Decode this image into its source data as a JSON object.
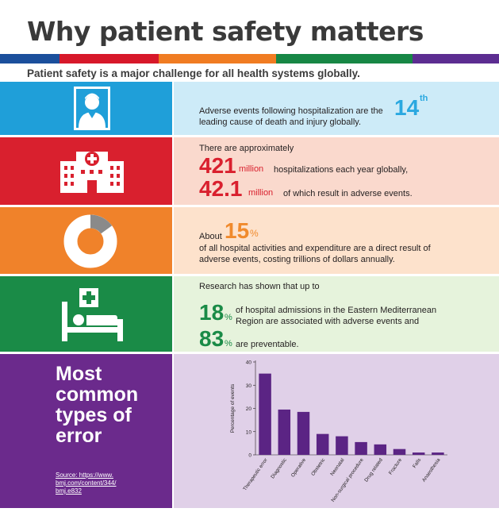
{
  "header": {
    "title": "Why patient safety matters",
    "subtitle": "Patient safety is a major challenge for all health systems globally.",
    "band_colors": [
      "#1b4f9c",
      "#d7182a",
      "#f07c22",
      "#178745",
      "#5c2d91"
    ]
  },
  "rows": {
    "death": {
      "text_before": "Adverse events following hospitalization are the",
      "rank": "14",
      "rank_suffix": "th",
      "text_after": "leading cause of death and injury globally.",
      "icon": "patient-portrait-icon",
      "colors": {
        "icon_bg": "#1f9fd9",
        "text_bg": "#cdebf8",
        "accent": "#2aa8e0"
      }
    },
    "hospitalizations": {
      "intro": "There are approximately",
      "value1": "421",
      "unit1": "million",
      "text1": "hospitalizations each year globally,",
      "value2": "42.1",
      "unit2": "million",
      "text2": "of which result in adverse events.",
      "icon": "hospital-building-icon",
      "colors": {
        "icon_bg": "#d9202e",
        "text_bg": "#fad9cd",
        "accent": "#d9202e"
      }
    },
    "expenditure": {
      "prefix": "About",
      "value": "15",
      "unit": "%",
      "line1": "of all hospital activities and expenditure are a direct result of",
      "line2": "adverse events, costing trillions of dollars annually.",
      "share_fraction": 0.15,
      "icon": "donut-chart-icon",
      "colors": {
        "icon_bg": "#f0822a",
        "text_bg": "#fde2cc",
        "accent": "#f08a2c"
      }
    },
    "emr": {
      "intro": "Research has shown that up to",
      "value1": "18",
      "unit1": "%",
      "text1a": "of hospital admissions in the Eastern Mediterranean",
      "text1b": "Region are associated with adverse events and",
      "value2": "83",
      "unit2": "%",
      "text2": "are preventable.",
      "icon": "hospital-bed-icon",
      "colors": {
        "icon_bg": "#1a8b47",
        "text_bg": "#e6f3dc",
        "accent": "#1a8b47"
      }
    }
  },
  "errors_section": {
    "heading_lines": [
      "Most",
      "common",
      "types of",
      "error"
    ],
    "source_lines": [
      "Source: https://www.",
      "bmj.com/content/344/",
      "bmj.e832"
    ],
    "colors": {
      "panel_bg": "#6b2a8c",
      "chart_bg": "#e0d0e8",
      "bar": "#5b2484"
    }
  },
  "chart_data": {
    "type": "bar",
    "title": "",
    "xlabel": "",
    "ylabel": "Percentage of events",
    "ylim": [
      0,
      40
    ],
    "yticks": [
      "0",
      "10",
      "20",
      "30",
      "40"
    ],
    "categories": [
      "Therapeutic error",
      "Diagnostic",
      "Operative",
      "Obstetric",
      "Neonatal",
      "Non-surgical procedure",
      "Drug related",
      "Fracture",
      "Falls",
      "Anaesthesia"
    ],
    "values": [
      35,
      19.5,
      18.5,
      9,
      8,
      5.5,
      4.5,
      2.5,
      1,
      1
    ]
  }
}
